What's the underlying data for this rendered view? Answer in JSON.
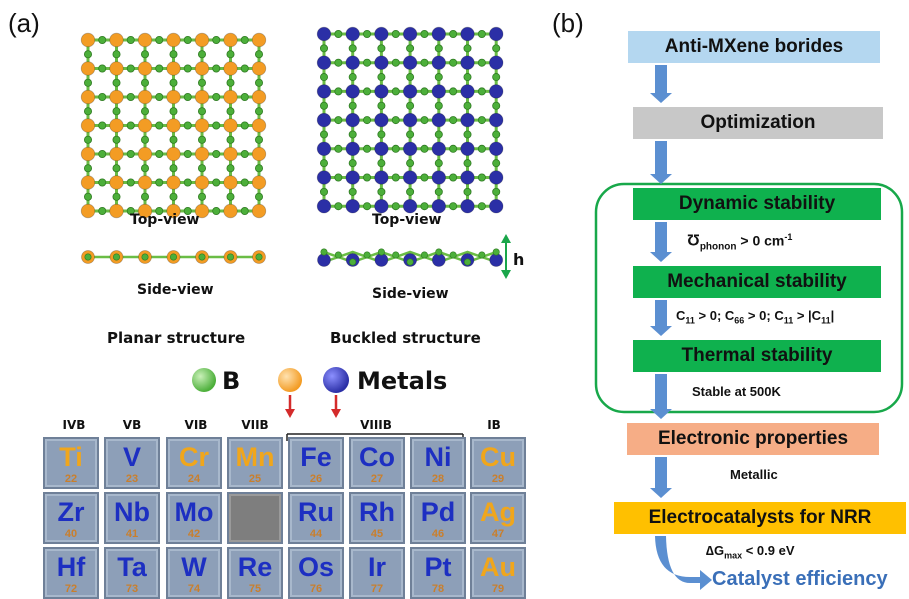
{
  "panel_a": {
    "label": "(a)",
    "planar": {
      "top_caption": "Top-view",
      "side_caption": "Side-view",
      "title": "Planar structure"
    },
    "buckled": {
      "top_caption": "Top-view",
      "side_caption": "Side-view",
      "title": "Buckled structure",
      "height_label": "h"
    },
    "legend": {
      "boron_label": "B",
      "metals_label": "Metals"
    },
    "colors": {
      "boron": "#4caf3a",
      "planar_metal": "#f39c24",
      "buckled_metal": "#2b2fa6",
      "bond": "#6abd45",
      "cell_bg": "#8d9fb8",
      "blue_symbol": "#1d2fc2",
      "orange_symbol": "#f0a61c",
      "atomic_number": "#c97f2d",
      "arrow": "#d42b2b"
    },
    "groups": [
      "IVB",
      "VB",
      "VIB",
      "VIIB",
      "VIIIB",
      "IB"
    ],
    "table": [
      [
        {
          "symbol": "Ti",
          "number": "22",
          "color": "orange"
        },
        {
          "symbol": "V",
          "number": "23",
          "color": "blue"
        },
        {
          "symbol": "Cr",
          "number": "24",
          "color": "orange"
        },
        {
          "symbol": "Mn",
          "number": "25",
          "color": "orange"
        },
        {
          "symbol": "Fe",
          "number": "26",
          "color": "blue"
        },
        {
          "symbol": "Co",
          "number": "27",
          "color": "blue"
        },
        {
          "symbol": "Ni",
          "number": "28",
          "color": "blue"
        },
        {
          "symbol": "Cu",
          "number": "29",
          "color": "orange"
        }
      ],
      [
        {
          "symbol": "Zr",
          "number": "40",
          "color": "blue"
        },
        {
          "symbol": "Nb",
          "number": "41",
          "color": "blue"
        },
        {
          "symbol": "Mo",
          "number": "42",
          "color": "blue"
        },
        {
          "symbol": "",
          "number": "",
          "color": "empty"
        },
        {
          "symbol": "Ru",
          "number": "44",
          "color": "blue"
        },
        {
          "symbol": "Rh",
          "number": "45",
          "color": "blue"
        },
        {
          "symbol": "Pd",
          "number": "46",
          "color": "blue"
        },
        {
          "symbol": "Ag",
          "number": "47",
          "color": "orange"
        }
      ],
      [
        {
          "symbol": "Hf",
          "number": "72",
          "color": "blue"
        },
        {
          "symbol": "Ta",
          "number": "73",
          "color": "blue"
        },
        {
          "symbol": "W",
          "number": "74",
          "color": "blue"
        },
        {
          "symbol": "Re",
          "number": "75",
          "color": "blue"
        },
        {
          "symbol": "Os",
          "number": "76",
          "color": "blue"
        },
        {
          "symbol": "Ir",
          "number": "77",
          "color": "blue"
        },
        {
          "symbol": "Pt",
          "number": "78",
          "color": "blue"
        },
        {
          "symbol": "Au",
          "number": "79",
          "color": "orange"
        }
      ]
    ]
  },
  "panel_b": {
    "label": "(b)",
    "boxes": {
      "anti_mxene": {
        "text": "Anti-MXene borides",
        "color": "#b4d7f0"
      },
      "optimization": {
        "text": "Optimization",
        "color": "#c8c8c8"
      },
      "dynamic": {
        "text": "Dynamic  stability",
        "color": "#0fb14e"
      },
      "mechanical": {
        "text": "Mechanical stability",
        "color": "#0fb14e"
      },
      "thermal": {
        "text": "Thermal stability",
        "color": "#0fb14e"
      },
      "electronic": {
        "text": "Electronic properties",
        "color": "#f6ad86"
      },
      "electrocatalysts": {
        "text": "Electrocatalysts for NRR",
        "color": "#ffc000"
      }
    },
    "conditions": {
      "phonon": {
        "symbol": "Ʊ",
        "sub": "phonon",
        "rest": " > 0 cm",
        "sup": "-1"
      },
      "mechanical": {
        "c11": "C",
        "c11_sub": "11",
        "t1": " > 0; ",
        "c66": "C",
        "c66_sub": "66",
        "t2": " > 0; ",
        "c11b": "C",
        "c11b_sub": "11",
        "t3": " > |",
        "c11c": "C",
        "c11c_sub": "11",
        "t4": "|"
      },
      "thermal": "Stable at 500K",
      "electronic": "Metallic",
      "nrr": {
        "pre": "∆G",
        "sub": "max",
        "post": " < 0.9 eV"
      }
    },
    "final_text": "Catalyst efficiency",
    "colors": {
      "arrow": "#5b8fd1",
      "stability_outline": "#18a84a",
      "final_text": "#3a6fb8"
    }
  }
}
